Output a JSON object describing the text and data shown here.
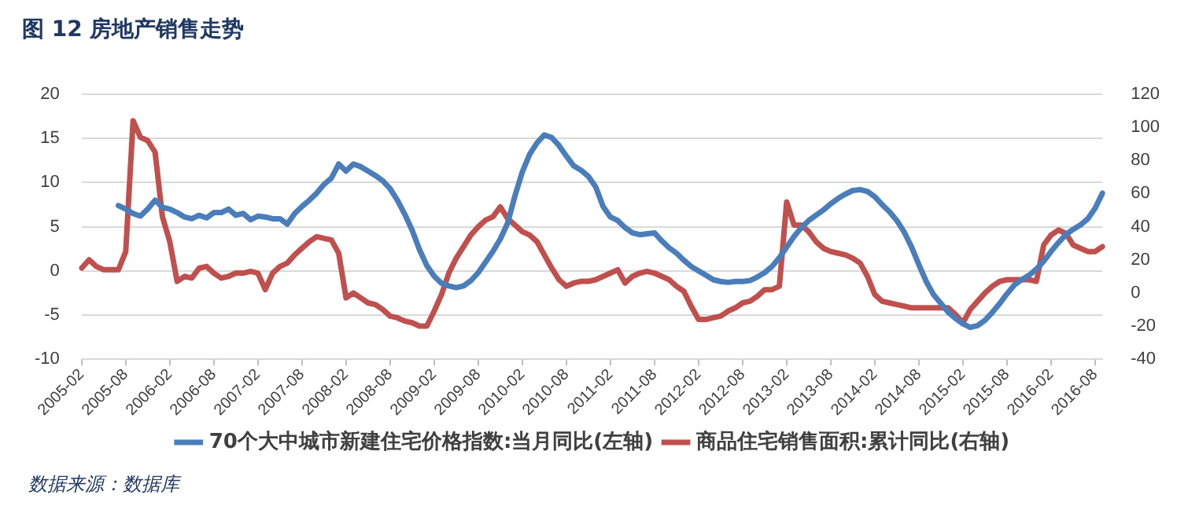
{
  "chart_data": {
    "type": "line",
    "title": "图 12 房地产销售走势",
    "annotations": [
      "数据来源：数据库"
    ],
    "categories": [
      "2005-02",
      null,
      null,
      null,
      null,
      null,
      "2005-08",
      null,
      null,
      null,
      null,
      null,
      "2006-02",
      null,
      null,
      null,
      null,
      null,
      "2006-08",
      null,
      null,
      null,
      null,
      null,
      "2007-02",
      null,
      null,
      null,
      null,
      null,
      "2007-08",
      null,
      null,
      null,
      null,
      null,
      "2008-02",
      null,
      null,
      null,
      null,
      null,
      "2008-08",
      null,
      null,
      null,
      null,
      null,
      "2009-02",
      null,
      null,
      null,
      null,
      null,
      "2009-08",
      null,
      null,
      null,
      null,
      null,
      "2010-02",
      null,
      null,
      null,
      null,
      null,
      "2010-08",
      null,
      null,
      null,
      null,
      null,
      "2011-02",
      null,
      null,
      null,
      null,
      null,
      "2011-08",
      null,
      null,
      null,
      null,
      null,
      "2012-02",
      null,
      null,
      null,
      null,
      null,
      "2012-08",
      null,
      null,
      null,
      null,
      null,
      "2013-02",
      null,
      null,
      null,
      null,
      null,
      "2013-08",
      null,
      null,
      null,
      null,
      null,
      "2014-02",
      null,
      null,
      null,
      null,
      null,
      "2014-08",
      null,
      null,
      null,
      null,
      null,
      "2015-02",
      null,
      null,
      null,
      null,
      null,
      "2015-08",
      null,
      null,
      null,
      null,
      null,
      "2016-02",
      null,
      null,
      null,
      null,
      null,
      "2016-08",
      null
    ],
    "series": [
      {
        "name": "70个大中城市新建住宅价格指数:当月同比(左轴)",
        "color": "#4a7ebb",
        "axis": "y",
        "values": [
          null,
          null,
          null,
          null,
          null,
          7.4,
          7.0,
          6.5,
          6.2,
          7.0,
          8.0,
          7.2,
          7.0,
          6.6,
          6.1,
          5.9,
          6.3,
          6.0,
          6.6,
          6.6,
          7.0,
          6.3,
          6.5,
          5.8,
          6.2,
          6.1,
          5.9,
          5.9,
          5.3,
          6.5,
          7.3,
          8.0,
          8.8,
          9.8,
          10.5,
          12.1,
          11.3,
          12.1,
          11.8,
          11.3,
          10.8,
          10.2,
          9.3,
          8.0,
          6.4,
          4.6,
          2.4,
          0.6,
          -0.6,
          -1.4,
          -1.7,
          -1.9,
          -1.7,
          -1.1,
          -0.2,
          1.0,
          2.2,
          3.6,
          5.4,
          8.5,
          11.2,
          13.2,
          14.5,
          15.4,
          15.1,
          14.2,
          13.0,
          11.9,
          11.4,
          10.7,
          9.5,
          7.3,
          6.1,
          5.7,
          4.9,
          4.3,
          4.1,
          4.2,
          4.3,
          3.4,
          2.6,
          2.0,
          1.2,
          0.5,
          0,
          -0.5,
          -1.0,
          -1.2,
          -1.3,
          -1.2,
          -1.2,
          -1.1,
          -0.7,
          -0.2,
          0.5,
          1.5,
          2.7,
          3.9,
          4.9,
          5.7,
          6.3,
          6.9,
          7.6,
          8.2,
          8.7,
          9.1,
          9.2,
          9.0,
          8.4,
          7.5,
          6.7,
          5.7,
          4.4,
          2.7,
          0.7,
          -1.2,
          -2.7,
          -3.7,
          -4.7,
          -5.4,
          -6.0,
          -6.4,
          -6.2,
          -5.6,
          -4.7,
          -3.7,
          -2.6,
          -1.6,
          -1.0,
          -0.5,
          0.2,
          1.1,
          2.2,
          3.2,
          4.1,
          4.7,
          5.2,
          5.9,
          7.1,
          8.8
        ]
      },
      {
        "name": "商品住宅销售面积:累计同比(右轴)",
        "color": "#c0504d",
        "axis": "y2",
        "values": [
          15,
          20,
          16,
          14,
          14,
          14,
          25,
          104,
          94,
          92,
          85,
          46,
          31,
          7,
          10,
          9,
          15,
          16,
          12,
          9,
          10,
          12,
          12,
          13,
          12,
          2,
          12,
          16,
          18,
          23,
          27,
          31,
          34,
          33,
          32,
          24,
          -3,
          0,
          -3,
          -6,
          -7,
          -10,
          -14,
          -15,
          -17,
          -18,
          -20,
          -20,
          -11,
          -1,
          12,
          21,
          28,
          35,
          40,
          44,
          46,
          52,
          45,
          41,
          37,
          35,
          31,
          23,
          15,
          8,
          4,
          6,
          7,
          7,
          8,
          10,
          12,
          14,
          6,
          10,
          12,
          13,
          12,
          10,
          8,
          4,
          1,
          -8,
          -16,
          -16,
          -15,
          -14,
          -11,
          -9,
          -6,
          -5,
          -2,
          2,
          2,
          4,
          55,
          41,
          41,
          37,
          31,
          27,
          25,
          24,
          23,
          21,
          18,
          10,
          -1,
          -5,
          -6,
          -7,
          -8,
          -9,
          -9,
          -9,
          -9,
          -9,
          -9,
          -13,
          -18,
          -10,
          -5,
          0,
          4,
          7,
          8,
          8,
          8,
          8,
          7,
          29,
          35,
          38,
          36,
          29,
          27,
          25,
          25,
          28
        ]
      }
    ],
    "ylim": [
      -10,
      20
    ],
    "yticks": [
      -10,
      -5,
      0,
      5,
      10,
      15,
      20
    ],
    "y2lim": [
      -40,
      120
    ],
    "y2ticks": [
      -40,
      -20,
      0,
      20,
      40,
      60,
      80,
      100,
      120
    ],
    "grid": "y",
    "legend": "bottom",
    "marker": "none",
    "line_style": "solid"
  }
}
